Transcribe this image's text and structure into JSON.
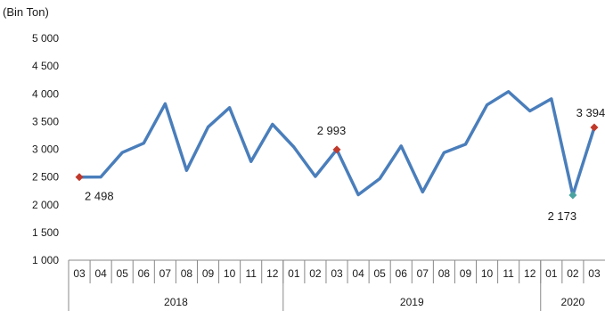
{
  "chart_data": {
    "type": "line",
    "unit_label": "(Bin Ton)",
    "title": "",
    "xlabel": "",
    "ylabel": "",
    "ylim": [
      1000,
      5000
    ],
    "ytick_values": [
      1000,
      1500,
      2000,
      2500,
      3000,
      3500,
      4000,
      4500,
      5000
    ],
    "ytick_labels": [
      "1 000",
      "1 500",
      "2 000",
      "2 500",
      "3 000",
      "3 500",
      "4 000",
      "4 500",
      "5 000"
    ],
    "grid": false,
    "legend": "none",
    "line_color": "#4a7ebb",
    "marker_color_red": "#c0392b",
    "marker_color_teal": "#4aa3a0",
    "categories": [
      "03",
      "04",
      "05",
      "06",
      "07",
      "08",
      "09",
      "10",
      "11",
      "12",
      "01",
      "02",
      "03",
      "04",
      "05",
      "06",
      "07",
      "08",
      "09",
      "10",
      "11",
      "12",
      "01",
      "02",
      "03"
    ],
    "year_groups": [
      {
        "label": "2018",
        "count": 10
      },
      {
        "label": "2019",
        "count": 12
      },
      {
        "label": "2020",
        "count": 3
      }
    ],
    "series": [
      {
        "values": [
          2498,
          2500,
          2940,
          3110,
          3820,
          2620,
          3400,
          3750,
          2780,
          3450,
          3040,
          2510,
          2993,
          2180,
          2470,
          3060,
          2230,
          2940,
          3090,
          3800,
          4040,
          3690,
          3910,
          2173,
          3394
        ]
      }
    ],
    "data_labels": [
      {
        "index": 0,
        "text": "2 498",
        "marker": "red"
      },
      {
        "index": 12,
        "text": "2 993",
        "marker": "red"
      },
      {
        "index": 23,
        "text": "2 173",
        "marker": "teal"
      },
      {
        "index": 24,
        "text": "3 394",
        "marker": "red"
      }
    ]
  }
}
